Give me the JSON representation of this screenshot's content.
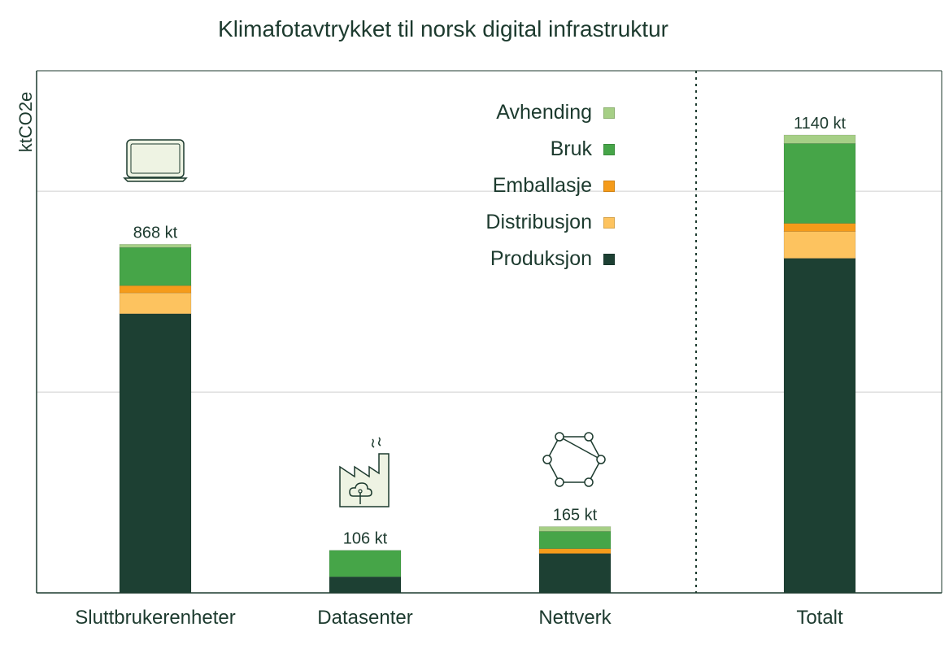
{
  "chart_data": {
    "type": "bar",
    "stacked": true,
    "title": "Klimafotavtrykket til norsk digital infrastruktur",
    "ylabel": "ktCO2e",
    "xlabel": "",
    "categories": [
      "Sluttbrukerenheter",
      "Datasenter",
      "Nettverk",
      "Totalt"
    ],
    "totals_labels": [
      "868 kt",
      "106 kt",
      "165 kt",
      "1140 kt"
    ],
    "ylim": [
      0,
      1300
    ],
    "grid": true,
    "yticks": [
      500,
      1000
    ],
    "legend_placement": "top-center",
    "series": [
      {
        "name": "Produksjon",
        "color": "#1d4033",
        "values": [
          695,
          40,
          98,
          833
        ]
      },
      {
        "name": "Distribusjon",
        "color": "#fdc35f",
        "values": [
          52,
          0,
          0,
          67
        ]
      },
      {
        "name": "Emballasje",
        "color": "#f59b1a",
        "values": [
          18,
          0,
          12,
          20
        ]
      },
      {
        "name": "Bruk",
        "color": "#46a548",
        "values": [
          95,
          66,
          43,
          199
        ]
      },
      {
        "name": "Avhending",
        "color": "#a6cf86",
        "values": [
          8,
          0,
          12,
          21
        ]
      }
    ],
    "legend_order": [
      "Avhending",
      "Bruk",
      "Emballasje",
      "Distribusjon",
      "Produksjon"
    ],
    "icons": [
      "laptop-icon",
      "factory-icon",
      "network-icon"
    ]
  },
  "colors": {
    "text": "#1c3a2e",
    "frame": "#1c3a2e",
    "grid": "#cfcfcf",
    "icon_fill": "#eef3e3"
  }
}
